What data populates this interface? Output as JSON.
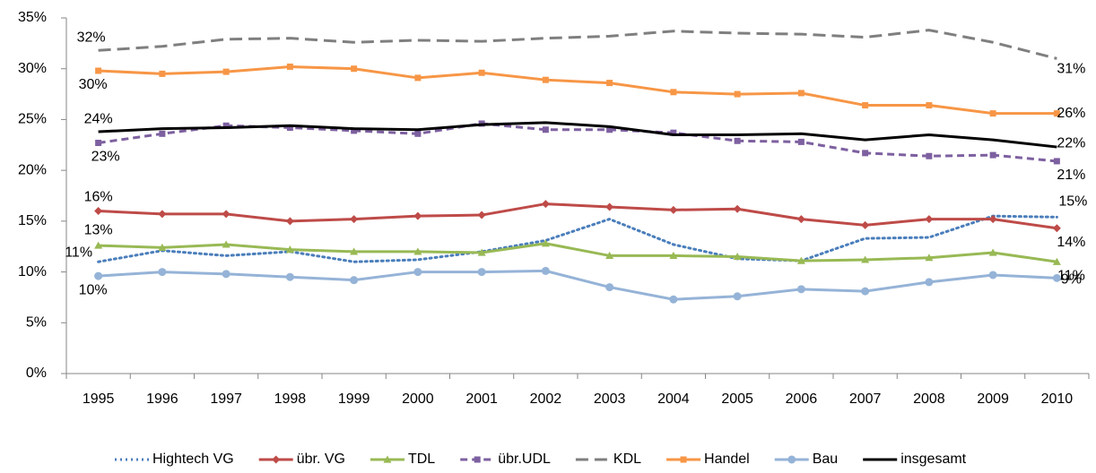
{
  "chart_data": {
    "type": "line",
    "categories": [
      "1995",
      "1996",
      "1997",
      "1998",
      "1999",
      "2000",
      "2001",
      "2002",
      "2003",
      "2004",
      "2005",
      "2006",
      "2007",
      "2008",
      "2009",
      "2010"
    ],
    "ylim": [
      0,
      35
    ],
    "yticks": [
      {
        "value": 0,
        "label": "0%"
      },
      {
        "value": 5,
        "label": "5%"
      },
      {
        "value": 10,
        "label": "10%"
      },
      {
        "value": 15,
        "label": "15%"
      },
      {
        "value": 20,
        "label": "20%"
      },
      {
        "value": 25,
        "label": "25%"
      },
      {
        "value": 30,
        "label": "30%"
      },
      {
        "value": 35,
        "label": "35%"
      }
    ],
    "grid": false,
    "legend": "bottom",
    "series": [
      {
        "name": "Hightech VG",
        "color": "#4a7ebb",
        "dash": "dotted",
        "marker": "none",
        "values": [
          11.0,
          12.1,
          11.6,
          12.0,
          11.0,
          11.2,
          12.0,
          13.1,
          15.2,
          12.7,
          11.3,
          11.1,
          13.3,
          13.4,
          15.5,
          15.4
        ],
        "value_labels": [
          "11%",
          null,
          null,
          null,
          null,
          null,
          null,
          null,
          null,
          null,
          null,
          null,
          null,
          null,
          null,
          "15%"
        ]
      },
      {
        "name": "übr. VG",
        "color": "#be4b48",
        "dash": "solid",
        "marker": "diamond",
        "values": [
          16.0,
          15.7,
          15.7,
          15.0,
          15.2,
          15.5,
          15.6,
          16.7,
          16.4,
          16.1,
          16.2,
          15.2,
          14.6,
          15.2,
          15.2,
          14.3
        ],
        "value_labels": [
          "16%",
          null,
          null,
          null,
          null,
          null,
          null,
          null,
          null,
          null,
          null,
          null,
          null,
          null,
          null,
          "14%"
        ]
      },
      {
        "name": "TDL",
        "color": "#98b954",
        "dash": "solid",
        "marker": "triangle",
        "values": [
          12.6,
          12.4,
          12.7,
          12.2,
          12.0,
          12.0,
          11.9,
          12.8,
          11.6,
          11.6,
          11.5,
          11.1,
          11.2,
          11.4,
          11.9,
          11.0
        ],
        "value_labels": [
          "13%",
          null,
          null,
          null,
          null,
          null,
          null,
          null,
          null,
          null,
          null,
          null,
          null,
          null,
          null,
          "11%"
        ]
      },
      {
        "name": "übr.UDL",
        "color": "#7d60a0",
        "dash": "dashed",
        "marker": "square",
        "values": [
          22.7,
          23.6,
          24.4,
          24.2,
          23.9,
          23.6,
          24.6,
          24.0,
          24.0,
          23.7,
          22.9,
          22.8,
          21.7,
          21.4,
          21.5,
          20.9
        ],
        "value_labels": [
          "23%",
          null,
          null,
          null,
          null,
          null,
          null,
          null,
          null,
          null,
          null,
          null,
          null,
          null,
          null,
          "21%"
        ]
      },
      {
        "name": "KDL",
        "color": "#7f7f7f",
        "dash": "longdash",
        "marker": "none",
        "values": [
          31.8,
          32.2,
          32.9,
          33.0,
          32.6,
          32.8,
          32.7,
          33.0,
          33.2,
          33.7,
          33.5,
          33.4,
          33.1,
          33.8,
          32.6,
          31.0
        ],
        "value_labels": [
          "32%",
          null,
          null,
          null,
          null,
          null,
          null,
          null,
          null,
          null,
          null,
          null,
          null,
          null,
          null,
          "31%"
        ]
      },
      {
        "name": "Handel",
        "color": "#f79646",
        "dash": "solid",
        "marker": "square",
        "values": [
          29.8,
          29.5,
          29.7,
          30.2,
          30.0,
          29.1,
          29.6,
          28.9,
          28.6,
          27.7,
          27.5,
          27.6,
          26.4,
          26.4,
          25.6,
          25.6
        ],
        "value_labels": [
          "30%",
          null,
          null,
          null,
          null,
          null,
          null,
          null,
          null,
          null,
          null,
          null,
          null,
          null,
          null,
          "26%"
        ]
      },
      {
        "name": "Bau",
        "color": "#95b3d7",
        "dash": "solid",
        "marker": "circle",
        "values": [
          9.6,
          10.0,
          9.8,
          9.5,
          9.2,
          10.0,
          10.0,
          10.1,
          8.5,
          7.3,
          7.6,
          8.3,
          8.1,
          9.0,
          9.7,
          9.4
        ],
        "value_labels": [
          "10%",
          null,
          null,
          null,
          null,
          null,
          null,
          null,
          null,
          null,
          null,
          null,
          null,
          null,
          null,
          "9%"
        ]
      },
      {
        "name": "insgesamt",
        "color": "#000000",
        "dash": "solid",
        "marker": "none",
        "values": [
          23.8,
          24.1,
          24.2,
          24.4,
          24.1,
          24.0,
          24.5,
          24.7,
          24.3,
          23.5,
          23.5,
          23.6,
          23.0,
          23.5,
          23.0,
          22.3
        ],
        "value_labels": [
          "24%",
          null,
          null,
          null,
          null,
          null,
          null,
          null,
          null,
          null,
          null,
          null,
          null,
          null,
          null,
          "22%"
        ]
      }
    ]
  }
}
